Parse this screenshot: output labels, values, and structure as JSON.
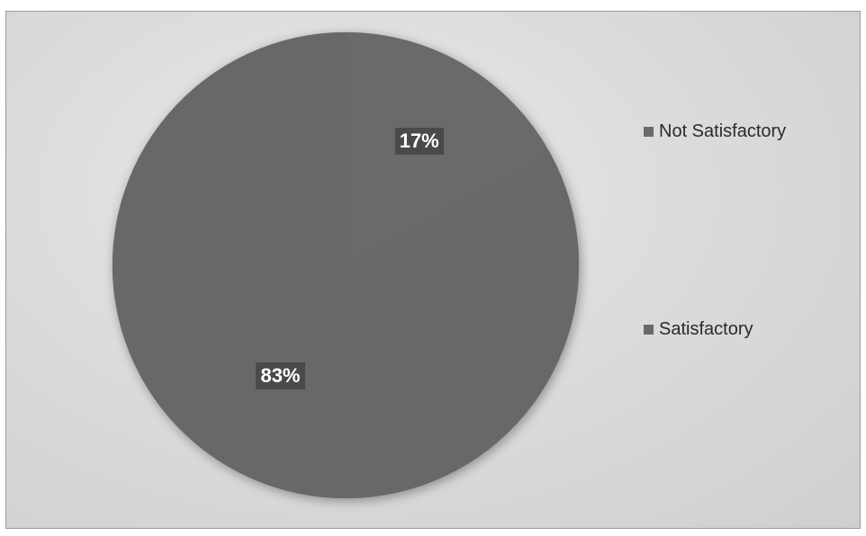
{
  "chart_data": {
    "type": "pie",
    "title": "",
    "slices": [
      {
        "label": "Not Satisfactory",
        "value": 17,
        "display": "17%",
        "color": "#6b6b6b"
      },
      {
        "label": "Satisfactory",
        "value": 83,
        "display": "83%",
        "color": "#686868"
      }
    ],
    "legend_placement": "right",
    "start_angle_deg": 0,
    "direction": "clockwise"
  },
  "colors": {
    "background": "#dcdcdc",
    "label_box": "#4a4a4a",
    "legend_swatch": "#6a6a6a"
  }
}
